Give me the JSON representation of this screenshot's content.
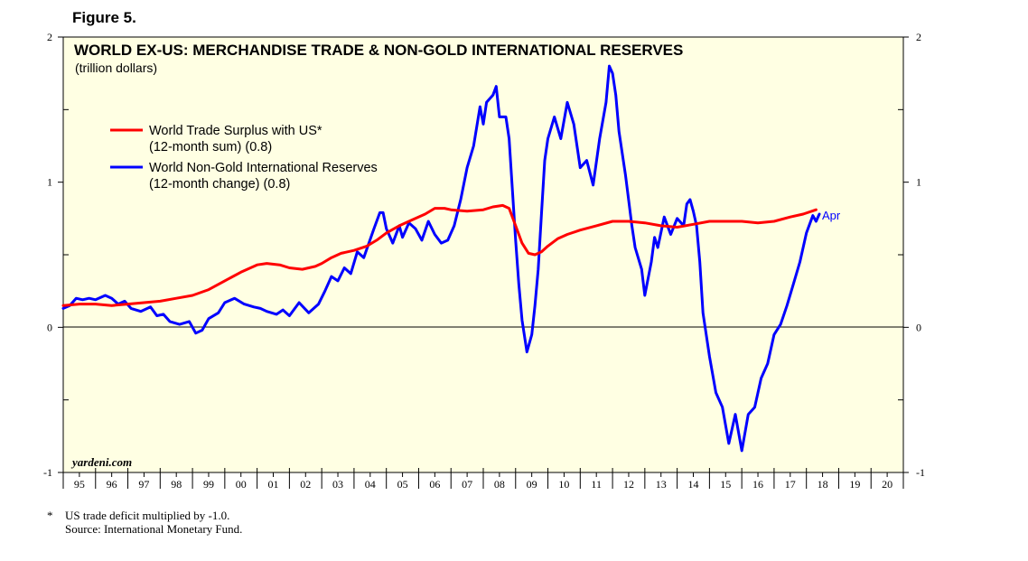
{
  "figure_label": "Figure 5.",
  "footnote": {
    "marker": "*",
    "line1": "US trade deficit multiplied by -1.0.",
    "line2": "Source: International Monetary Fund."
  },
  "colors": {
    "background": "#ffffe3",
    "red": "#ff0000",
    "blue": "#0000ff"
  },
  "chart_data": {
    "type": "line",
    "title": "WORLD EX-US: MERCHANDISE TRADE & NON-GOLD INTERNATIONAL RESERVES",
    "subtitle": "(trillion dollars)",
    "watermark": "yardeni.com",
    "ylim": [
      -1,
      2
    ],
    "y_ticks": [
      -1,
      0,
      1,
      2
    ],
    "y_tick_labels": [
      "-1",
      "0",
      "1",
      "2"
    ],
    "xlim": [
      1995,
      2021
    ],
    "x_tick_labels": [
      "95",
      "96",
      "97",
      "98",
      "99",
      "00",
      "01",
      "02",
      "03",
      "04",
      "05",
      "06",
      "07",
      "08",
      "09",
      "10",
      "11",
      "12",
      "13",
      "14",
      "15",
      "16",
      "17",
      "18",
      "19",
      "20"
    ],
    "legend_position": "upper-left",
    "end_label": "Apr",
    "series": [
      {
        "name": "World Trade Surplus with US*",
        "name_line2": "(12-month sum) (0.8)",
        "color": "#ff0000",
        "points": [
          [
            1995.0,
            0.15
          ],
          [
            1995.5,
            0.16
          ],
          [
            1996.0,
            0.16
          ],
          [
            1996.5,
            0.15
          ],
          [
            1997.0,
            0.16
          ],
          [
            1997.5,
            0.17
          ],
          [
            1998.0,
            0.18
          ],
          [
            1998.5,
            0.2
          ],
          [
            1999.0,
            0.22
          ],
          [
            1999.5,
            0.26
          ],
          [
            2000.0,
            0.32
          ],
          [
            2000.5,
            0.38
          ],
          [
            2001.0,
            0.43
          ],
          [
            2001.3,
            0.44
          ],
          [
            2001.7,
            0.43
          ],
          [
            2002.0,
            0.41
          ],
          [
            2002.4,
            0.4
          ],
          [
            2002.8,
            0.42
          ],
          [
            2003.0,
            0.44
          ],
          [
            2003.3,
            0.48
          ],
          [
            2003.6,
            0.51
          ],
          [
            2004.0,
            0.53
          ],
          [
            2004.4,
            0.56
          ],
          [
            2004.7,
            0.6
          ],
          [
            2005.0,
            0.65
          ],
          [
            2005.4,
            0.7
          ],
          [
            2005.8,
            0.74
          ],
          [
            2006.2,
            0.78
          ],
          [
            2006.5,
            0.82
          ],
          [
            2006.8,
            0.82
          ],
          [
            2007.0,
            0.81
          ],
          [
            2007.5,
            0.8
          ],
          [
            2008.0,
            0.81
          ],
          [
            2008.3,
            0.83
          ],
          [
            2008.6,
            0.84
          ],
          [
            2008.8,
            0.82
          ],
          [
            2009.0,
            0.7
          ],
          [
            2009.2,
            0.58
          ],
          [
            2009.4,
            0.51
          ],
          [
            2009.6,
            0.5
          ],
          [
            2009.8,
            0.52
          ],
          [
            2010.0,
            0.56
          ],
          [
            2010.3,
            0.61
          ],
          [
            2010.6,
            0.64
          ],
          [
            2011.0,
            0.67
          ],
          [
            2011.5,
            0.7
          ],
          [
            2012.0,
            0.73
          ],
          [
            2012.5,
            0.73
          ],
          [
            2013.0,
            0.72
          ],
          [
            2013.5,
            0.7
          ],
          [
            2014.0,
            0.69
          ],
          [
            2014.5,
            0.71
          ],
          [
            2015.0,
            0.73
          ],
          [
            2015.5,
            0.73
          ],
          [
            2016.0,
            0.73
          ],
          [
            2016.5,
            0.72
          ],
          [
            2017.0,
            0.73
          ],
          [
            2017.5,
            0.76
          ],
          [
            2017.9,
            0.78
          ],
          [
            2018.3,
            0.81
          ]
        ]
      },
      {
        "name": "World Non-Gold International Reserves",
        "name_line2": "(12-month change) (0.8)",
        "color": "#0000ff",
        "points": [
          [
            1995.0,
            0.13
          ],
          [
            1995.2,
            0.15
          ],
          [
            1995.4,
            0.2
          ],
          [
            1995.6,
            0.19
          ],
          [
            1995.8,
            0.2
          ],
          [
            1996.0,
            0.19
          ],
          [
            1996.3,
            0.22
          ],
          [
            1996.5,
            0.2
          ],
          [
            1996.7,
            0.16
          ],
          [
            1996.9,
            0.18
          ],
          [
            1997.1,
            0.13
          ],
          [
            1997.4,
            0.11
          ],
          [
            1997.7,
            0.14
          ],
          [
            1997.9,
            0.08
          ],
          [
            1998.1,
            0.09
          ],
          [
            1998.3,
            0.04
          ],
          [
            1998.6,
            0.02
          ],
          [
            1998.9,
            0.04
          ],
          [
            1999.1,
            -0.04
          ],
          [
            1999.3,
            -0.02
          ],
          [
            1999.5,
            0.06
          ],
          [
            1999.8,
            0.1
          ],
          [
            2000.0,
            0.17
          ],
          [
            2000.3,
            0.2
          ],
          [
            2000.6,
            0.16
          ],
          [
            2000.9,
            0.14
          ],
          [
            2001.1,
            0.13
          ],
          [
            2001.3,
            0.11
          ],
          [
            2001.6,
            0.09
          ],
          [
            2001.8,
            0.12
          ],
          [
            2002.0,
            0.08
          ],
          [
            2002.3,
            0.17
          ],
          [
            2002.6,
            0.1
          ],
          [
            2002.9,
            0.16
          ],
          [
            2003.1,
            0.25
          ],
          [
            2003.3,
            0.35
          ],
          [
            2003.5,
            0.32
          ],
          [
            2003.7,
            0.41
          ],
          [
            2003.9,
            0.37
          ],
          [
            2004.1,
            0.52
          ],
          [
            2004.3,
            0.48
          ],
          [
            2004.6,
            0.67
          ],
          [
            2004.8,
            0.79
          ],
          [
            2004.9,
            0.79
          ],
          [
            2005.0,
            0.68
          ],
          [
            2005.2,
            0.58
          ],
          [
            2005.4,
            0.7
          ],
          [
            2005.5,
            0.62
          ],
          [
            2005.7,
            0.72
          ],
          [
            2005.9,
            0.68
          ],
          [
            2006.1,
            0.6
          ],
          [
            2006.3,
            0.73
          ],
          [
            2006.5,
            0.64
          ],
          [
            2006.7,
            0.58
          ],
          [
            2006.9,
            0.6
          ],
          [
            2007.1,
            0.7
          ],
          [
            2007.3,
            0.88
          ],
          [
            2007.5,
            1.1
          ],
          [
            2007.7,
            1.25
          ],
          [
            2007.9,
            1.52
          ],
          [
            2008.0,
            1.4
          ],
          [
            2008.1,
            1.55
          ],
          [
            2008.3,
            1.6
          ],
          [
            2008.4,
            1.66
          ],
          [
            2008.5,
            1.45
          ],
          [
            2008.7,
            1.45
          ],
          [
            2008.8,
            1.3
          ],
          [
            2008.9,
            0.95
          ],
          [
            2009.0,
            0.6
          ],
          [
            2009.1,
            0.3
          ],
          [
            2009.2,
            0.05
          ],
          [
            2009.35,
            -0.17
          ],
          [
            2009.5,
            -0.05
          ],
          [
            2009.6,
            0.15
          ],
          [
            2009.7,
            0.4
          ],
          [
            2009.8,
            0.78
          ],
          [
            2009.9,
            1.15
          ],
          [
            2010.0,
            1.3
          ],
          [
            2010.2,
            1.45
          ],
          [
            2010.4,
            1.3
          ],
          [
            2010.6,
            1.55
          ],
          [
            2010.8,
            1.4
          ],
          [
            2011.0,
            1.1
          ],
          [
            2011.2,
            1.15
          ],
          [
            2011.4,
            0.98
          ],
          [
            2011.6,
            1.3
          ],
          [
            2011.8,
            1.55
          ],
          [
            2011.9,
            1.8
          ],
          [
            2012.0,
            1.75
          ],
          [
            2012.1,
            1.6
          ],
          [
            2012.2,
            1.35
          ],
          [
            2012.4,
            1.05
          ],
          [
            2012.6,
            0.7
          ],
          [
            2012.7,
            0.55
          ],
          [
            2012.9,
            0.4
          ],
          [
            2013.0,
            0.22
          ],
          [
            2013.2,
            0.45
          ],
          [
            2013.3,
            0.62
          ],
          [
            2013.4,
            0.55
          ],
          [
            2013.6,
            0.76
          ],
          [
            2013.8,
            0.64
          ],
          [
            2014.0,
            0.75
          ],
          [
            2014.2,
            0.7
          ],
          [
            2014.3,
            0.85
          ],
          [
            2014.4,
            0.88
          ],
          [
            2014.5,
            0.8
          ],
          [
            2014.6,
            0.7
          ],
          [
            2014.7,
            0.45
          ],
          [
            2014.8,
            0.1
          ],
          [
            2015.0,
            -0.2
          ],
          [
            2015.2,
            -0.45
          ],
          [
            2015.4,
            -0.55
          ],
          [
            2015.6,
            -0.8
          ],
          [
            2015.8,
            -0.6
          ],
          [
            2016.0,
            -0.85
          ],
          [
            2016.2,
            -0.6
          ],
          [
            2016.4,
            -0.55
          ],
          [
            2016.6,
            -0.35
          ],
          [
            2016.8,
            -0.25
          ],
          [
            2017.0,
            -0.05
          ],
          [
            2017.2,
            0.02
          ],
          [
            2017.4,
            0.15
          ],
          [
            2017.6,
            0.3
          ],
          [
            2017.8,
            0.45
          ],
          [
            2018.0,
            0.65
          ],
          [
            2018.2,
            0.77
          ],
          [
            2018.3,
            0.73
          ],
          [
            2018.4,
            0.78
          ]
        ]
      }
    ]
  }
}
